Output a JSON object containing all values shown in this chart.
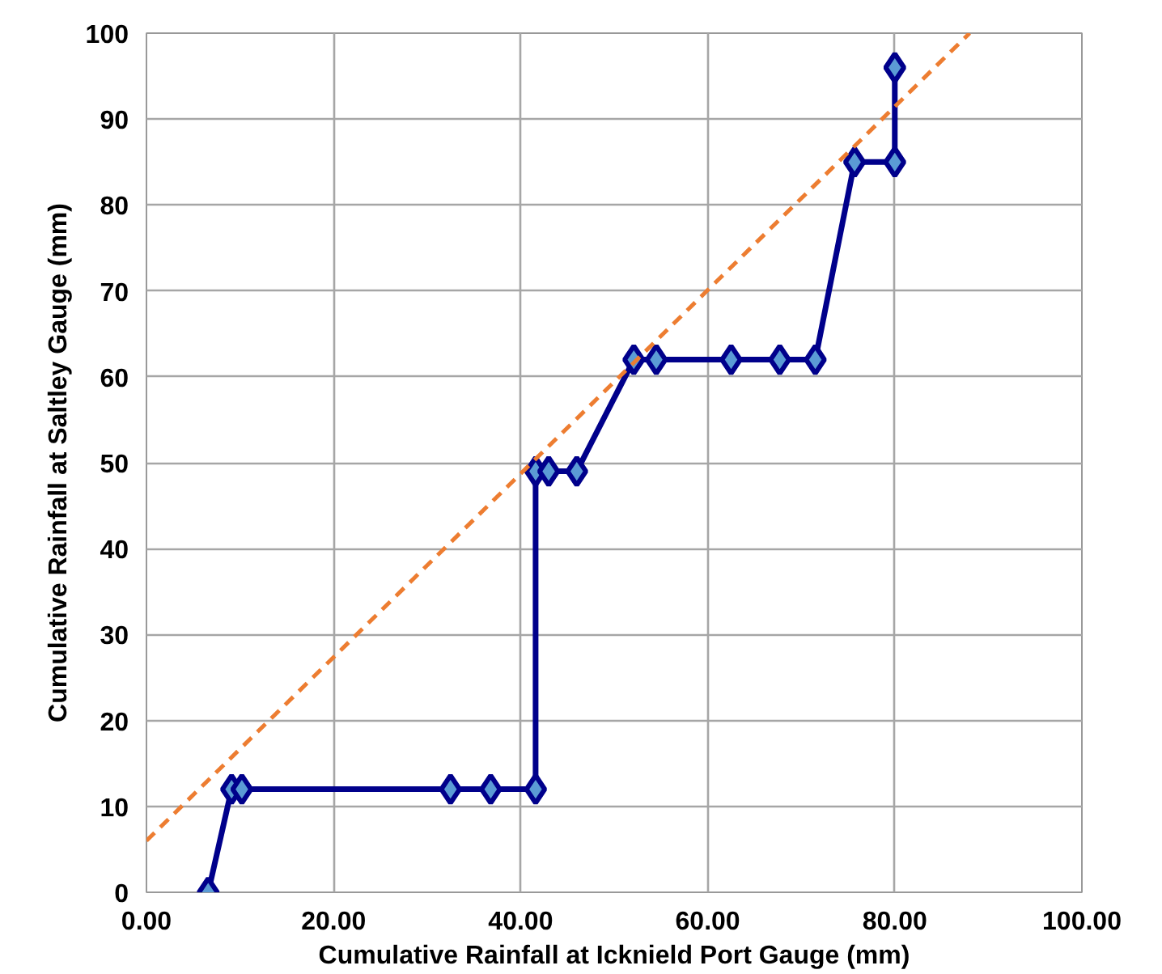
{
  "chart_data": {
    "type": "line",
    "xlabel": "Cumulative Rainfall at Icknield Port Gauge (mm)",
    "ylabel": "Cumulative Rainfall at Saltley Gauge (mm)",
    "xlim": [
      0,
      100
    ],
    "ylim": [
      0,
      100
    ],
    "xticks": [
      {
        "value": 0,
        "label": "0.00"
      },
      {
        "value": 20,
        "label": "20.00"
      },
      {
        "value": 40,
        "label": "40.00"
      },
      {
        "value": 60,
        "label": "60.00"
      },
      {
        "value": 80,
        "label": "80.00"
      },
      {
        "value": 100,
        "label": "100.00"
      }
    ],
    "yticks": [
      0,
      10,
      20,
      30,
      40,
      50,
      60,
      70,
      80,
      90,
      100
    ],
    "grid": true,
    "series": [
      {
        "color": "#00008b",
        "marker": "diamond",
        "line_style": "solid",
        "x": [
          6.6,
          9.1,
          10.2,
          32.5,
          36.8,
          41.6,
          41.6,
          43.0,
          46.0,
          52.1,
          54.5,
          62.5,
          67.7,
          71.5,
          75.7,
          80.0,
          80.0
        ],
        "values": [
          0,
          12,
          12,
          12,
          12,
          12,
          49,
          49,
          49,
          62,
          62,
          62,
          62,
          62,
          85,
          85,
          96
        ]
      },
      {
        "color": "#ed7d31",
        "marker": "none",
        "line_style": "dashed",
        "x": [
          0,
          88
        ],
        "values": [
          6,
          100
        ]
      }
    ]
  }
}
